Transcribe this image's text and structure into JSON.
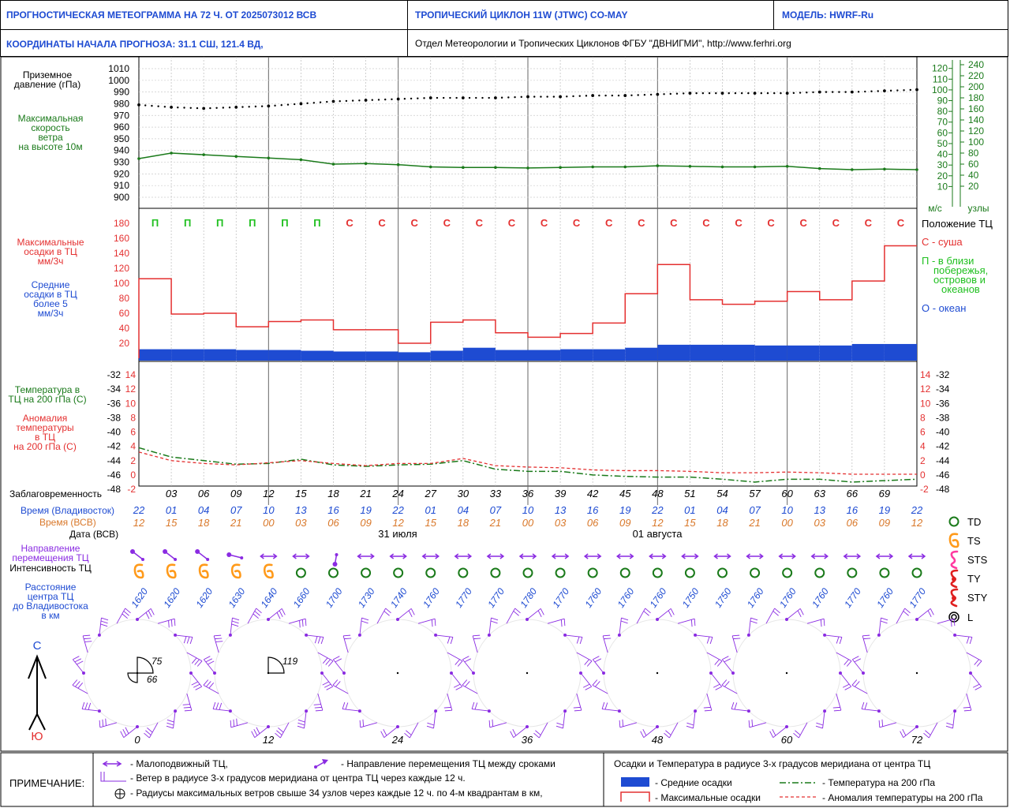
{
  "header": {
    "title": "ПРОГНОСТИЧЕСКАЯ МЕТЕОГРАММА НА 72 Ч. ОТ 2025073012 ВСВ",
    "cyclone": "ТРОПИЧЕСКИЙ ЦИКЛОН  11W  (JTWC)  CO-MAY",
    "model": "МОДЕЛЬ:   HWRF-Ru",
    "coords": "КООРДИНАТЫ НАЧАЛА ПРОГНОЗА:  31.1  СШ,   121.4  ВД,",
    "org": "Отдел Метеорологии и Тропических Циклонов ФГБУ \"ДВНИГМИ\",  http://www.ferhri.org"
  },
  "colors": {
    "blue": "#1e4bd2",
    "green": "#1a7a1a",
    "red": "#e43030",
    "orange": "#d9782a",
    "purple": "#8a2be2",
    "bright_green": "#20c020",
    "gray": "#666666"
  },
  "chart_data": {
    "type": "line",
    "lead_hours": [
      0,
      3,
      6,
      9,
      12,
      15,
      18,
      21,
      24,
      27,
      30,
      33,
      36,
      39,
      42,
      45,
      48,
      51,
      54,
      57,
      60,
      63,
      66,
      69,
      72
    ],
    "lead_labels": [
      "03",
      "06",
      "09",
      "12",
      "15",
      "18",
      "21",
      "24",
      "27",
      "30",
      "33",
      "36",
      "39",
      "42",
      "45",
      "48",
      "51",
      "54",
      "57",
      "60",
      "63",
      "66",
      "69"
    ],
    "time_vladivostok": [
      "22",
      "01",
      "04",
      "07",
      "10",
      "13",
      "16",
      "19",
      "22",
      "01",
      "04",
      "07",
      "10",
      "13",
      "16",
      "19",
      "22",
      "01",
      "04",
      "07",
      "10",
      "13",
      "16",
      "19",
      "22"
    ],
    "time_utc": [
      "12",
      "15",
      "18",
      "21",
      "00",
      "03",
      "06",
      "09",
      "12",
      "15",
      "18",
      "21",
      "00",
      "03",
      "06",
      "09",
      "12",
      "15",
      "18",
      "21",
      "00",
      "03",
      "06",
      "09",
      "12"
    ],
    "dates": [
      "31 июля",
      "01 августа"
    ],
    "pressure_panel": {
      "left_label": "Приземное давление (гПа)",
      "wind_label": "Максимальная скорость ветра на высоте 10м",
      "left_ticks": [
        1010,
        1000,
        990,
        980,
        970,
        960,
        950,
        940,
        930,
        920,
        910,
        900
      ],
      "ms_ticks": [
        120,
        110,
        100,
        90,
        80,
        70,
        60,
        50,
        40,
        30,
        20,
        10
      ],
      "kt_ticks": [
        240,
        220,
        200,
        180,
        160,
        140,
        120,
        100,
        80,
        60,
        40,
        20
      ],
      "ms_unit": "м/с",
      "kt_unit": "узлы",
      "pressure": [
        979,
        977,
        976,
        977,
        978,
        980,
        982,
        983,
        984,
        985,
        985,
        985,
        986,
        986,
        987,
        987,
        988,
        989,
        989,
        989,
        989,
        990,
        990,
        991,
        992
      ],
      "wind_kt": [
        70,
        80,
        77,
        74,
        71,
        68,
        60,
        61,
        59,
        55,
        54,
        54,
        53,
        54,
        55,
        55,
        57,
        56,
        55,
        55,
        56,
        52,
        50,
        51,
        50
      ]
    },
    "precip_panel": {
      "max_label": "Максимальные осадки в ТЦ мм/3ч",
      "mean_label": "Средние осадки в ТЦ более 5 мм/3ч",
      "y_ticks": [
        180,
        160,
        140,
        120,
        100,
        80,
        60,
        40,
        20
      ],
      "ylim": [
        0,
        190
      ],
      "max_precip": [
        106,
        59,
        60,
        42,
        49,
        51,
        38,
        38,
        20,
        48,
        51,
        34,
        28,
        33,
        47,
        86,
        125,
        78,
        72,
        76,
        89,
        78,
        103,
        150
      ],
      "mean_precip": [
        12,
        12,
        12,
        11,
        11,
        10,
        9,
        9,
        8,
        10,
        14,
        11,
        11,
        12,
        12,
        14,
        18,
        18,
        18,
        17,
        17,
        17,
        19,
        19
      ],
      "position": [
        "П",
        "П",
        "П",
        "П",
        "П",
        "П",
        "С",
        "С",
        "С",
        "С",
        "С",
        "С",
        "С",
        "С",
        "С",
        "С",
        "С",
        "С",
        "С",
        "С",
        "С",
        "С",
        "С",
        "С"
      ],
      "legend_title": "Положение ТЦ",
      "legend_land": "С - суша",
      "legend_coast": "П - в близи побережья, островов и океанов",
      "legend_ocean": "О - океан"
    },
    "temp_panel": {
      "temp_label": "Температура в ТЦ на 200 гПа (С)",
      "anom_label": "Аномалия температуры в ТЦ на 200 гПа (С)",
      "temp_ticks": [
        -32,
        -34,
        -36,
        -38,
        -40,
        -42,
        -44,
        -46,
        -48
      ],
      "anom_ticks": [
        14,
        12,
        10,
        8,
        6,
        4,
        2,
        0,
        -2
      ],
      "temperature": [
        -42.2,
        -43.5,
        -44,
        -44.5,
        -44.4,
        -43.8,
        -44.6,
        -44.8,
        -44.6,
        -44.5,
        -44,
        -45.2,
        -45.5,
        -45.5,
        -46,
        -46.2,
        -46.3,
        -46.3,
        -46.6,
        -47,
        -46.6,
        -46.6,
        -47,
        -46.8,
        -46.6
      ],
      "anomaly": [
        3.2,
        2,
        1.6,
        1.4,
        1.7,
        2,
        1.6,
        1.3,
        1.6,
        1.6,
        2.3,
        1.3,
        1.1,
        1,
        0.7,
        0.6,
        0.6,
        0.5,
        0.3,
        0.3,
        0.4,
        0.3,
        0.1,
        0.1,
        0.1
      ],
      "lead_title": "Заблаговременность"
    },
    "rows": {
      "time_vlad_label": "Время (Владивосток)",
      "time_utc_label": "Время (ВСВ)",
      "date_label": "Дата (ВСВ)",
      "motion_label": "Направление перемещения ТЦ",
      "intensity_label": "Интенсивность ТЦ",
      "distance_label": "Расстояние центра ТЦ до Владивостока в км",
      "motion": [
        "nw",
        "nw",
        "nw",
        "w",
        "ew",
        "ew",
        "sw",
        "ew",
        "ew",
        "ew",
        "ew",
        "ew",
        "ew",
        "ew",
        "ew",
        "ew",
        "ew",
        "ew",
        "ew",
        "ew",
        "ew",
        "ew",
        "ew",
        "ew",
        "ew"
      ],
      "intensity": [
        "TS",
        "TS",
        "TS",
        "TS",
        "TS",
        "TD",
        "TD",
        "TD",
        "TD",
        "TD",
        "TD",
        "TD",
        "TD",
        "TD",
        "TD",
        "TD",
        "TD",
        "TD",
        "TD",
        "TD",
        "TD",
        "TD",
        "TD",
        "TD",
        "TD"
      ],
      "distance": [
        "1620",
        "1620",
        "1620",
        "1630",
        "1640",
        "1660",
        "1700",
        "1730",
        "1740",
        "1760",
        "1770",
        "1770",
        "1780",
        "1770",
        "1760",
        "1760",
        "1760",
        "1750",
        "1750",
        "1760",
        "1760",
        "1760",
        "1770",
        "1760",
        "1770"
      ]
    },
    "intensity_legend": [
      "TD",
      "TS",
      "STS",
      "TY",
      "STY",
      "L"
    ],
    "wind_roses": {
      "hours": [
        "0",
        "12",
        "24",
        "36",
        "48",
        "60",
        "72"
      ],
      "radii": [
        [
          "75",
          "66"
        ],
        [
          "119"
        ],
        [],
        [],
        [],
        [],
        []
      ]
    },
    "compass": {
      "north": "С",
      "south": "Ю"
    }
  },
  "notes": {
    "title": "ПРИМЕЧАНИЕ:",
    "stationary": "- Малоподвижный ТЦ,",
    "direction": "- Направление перемещения ТЦ между сроками",
    "wind_radius": "- Ветер в радиусе 3-х градусов меридиана от центра ТЦ через каждые 12 ч.",
    "radii": "- Радиусы максимальных ветров свыше 34 узлов через каждые 12 ч. по 4-м квадрантам в км,",
    "legend_title": "Осадки и Температура в радиусе 3-х градусов меридиана от центра ТЦ",
    "mean_precip": "- Средние осадки",
    "max_precip": "- Максимальные осадки",
    "temp": "- Температура на 200 гПа",
    "anom": "- Аномалия температуры на 200 гПа"
  }
}
